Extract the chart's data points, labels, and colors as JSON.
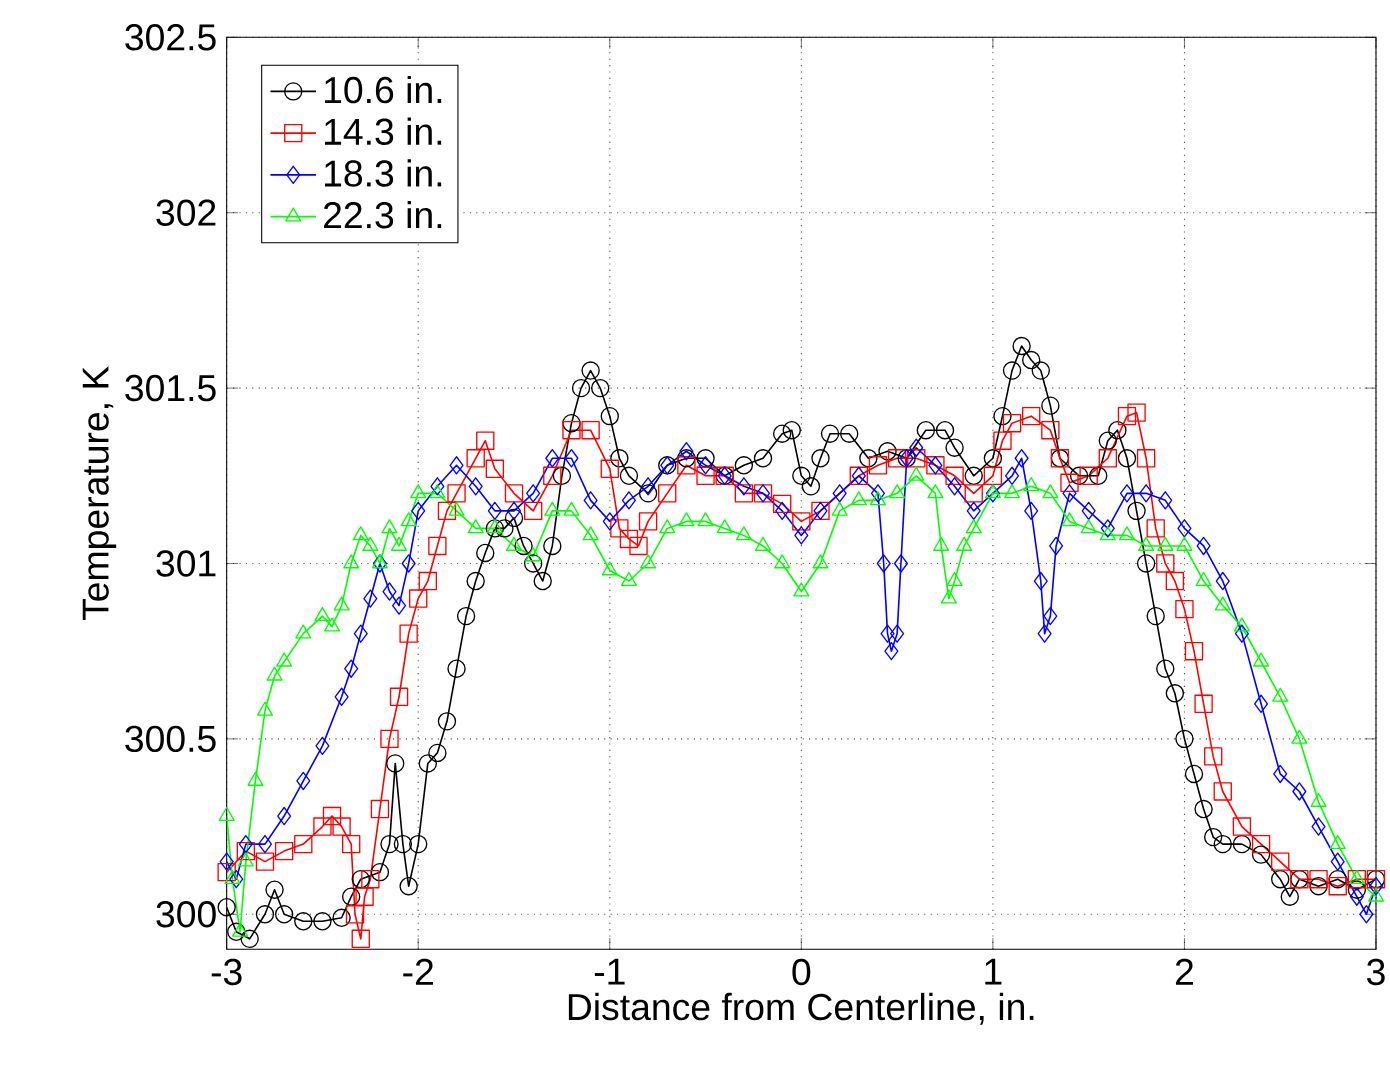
{
  "chart_data": {
    "type": "line",
    "xlabel": "Distance from Centerline, in.",
    "ylabel": "Temperature, K",
    "xlim": [
      -3,
      3
    ],
    "ylim": [
      299.9,
      302.5
    ],
    "xticks": [
      -3,
      -2,
      -1,
      0,
      1,
      2,
      3
    ],
    "yticks": [
      300,
      300.5,
      301,
      301.5,
      302,
      302.5
    ],
    "grid": true,
    "legend": "top left",
    "line_style": "solid",
    "series": [
      {
        "name": "10.6 in.",
        "color": "#000000",
        "marker": "circle",
        "x": [
          -3.0,
          -2.95,
          -2.88,
          -2.8,
          -2.75,
          -2.7,
          -2.6,
          -2.5,
          -2.4,
          -2.35,
          -2.3,
          -2.2,
          -2.15,
          -2.12,
          -2.08,
          -2.05,
          -2.0,
          -1.95,
          -1.9,
          -1.85,
          -1.8,
          -1.75,
          -1.7,
          -1.65,
          -1.6,
          -1.55,
          -1.5,
          -1.45,
          -1.4,
          -1.35,
          -1.3,
          -1.25,
          -1.2,
          -1.15,
          -1.1,
          -1.05,
          -1.0,
          -0.95,
          -0.9,
          -0.8,
          -0.7,
          -0.6,
          -0.5,
          -0.4,
          -0.3,
          -0.2,
          -0.1,
          -0.05,
          0.0,
          0.05,
          0.1,
          0.15,
          0.25,
          0.35,
          0.45,
          0.55,
          0.65,
          0.75,
          0.8,
          0.9,
          1.0,
          1.05,
          1.1,
          1.15,
          1.2,
          1.25,
          1.3,
          1.35,
          1.45,
          1.55,
          1.6,
          1.65,
          1.7,
          1.75,
          1.8,
          1.85,
          1.9,
          1.95,
          2.0,
          2.05,
          2.1,
          2.15,
          2.2,
          2.3,
          2.4,
          2.5,
          2.55,
          2.6,
          2.7,
          2.8,
          2.9,
          3.0
        ],
        "values": [
          300.02,
          299.95,
          299.93,
          300.0,
          300.07,
          300.0,
          299.98,
          299.98,
          299.99,
          300.05,
          300.1,
          300.12,
          300.2,
          300.43,
          300.2,
          300.08,
          300.2,
          300.43,
          300.46,
          300.55,
          300.7,
          300.85,
          300.95,
          301.03,
          301.1,
          301.1,
          301.13,
          301.05,
          301.0,
          300.95,
          301.05,
          301.25,
          301.4,
          301.5,
          301.55,
          301.5,
          301.42,
          301.3,
          301.25,
          301.2,
          301.28,
          301.3,
          301.3,
          301.25,
          301.28,
          301.3,
          301.37,
          301.38,
          301.25,
          301.22,
          301.3,
          301.37,
          301.37,
          301.3,
          301.32,
          301.3,
          301.38,
          301.38,
          301.33,
          301.25,
          301.3,
          301.42,
          301.55,
          301.62,
          301.58,
          301.55,
          301.45,
          301.3,
          301.25,
          301.25,
          301.35,
          301.38,
          301.3,
          301.15,
          301.0,
          300.85,
          300.7,
          300.63,
          300.5,
          300.4,
          300.3,
          300.22,
          300.2,
          300.2,
          300.17,
          300.1,
          300.05,
          300.1,
          300.08,
          300.1,
          300.07,
          300.1
        ]
      },
      {
        "name": "14.3 in.",
        "color": "#ff0000",
        "marker": "square",
        "x": [
          -3.0,
          -2.9,
          -2.8,
          -2.7,
          -2.6,
          -2.5,
          -2.45,
          -2.4,
          -2.35,
          -2.33,
          -2.3,
          -2.28,
          -2.25,
          -2.2,
          -2.15,
          -2.1,
          -2.05,
          -2.0,
          -1.95,
          -1.9,
          -1.85,
          -1.8,
          -1.7,
          -1.65,
          -1.6,
          -1.5,
          -1.4,
          -1.3,
          -1.2,
          -1.1,
          -1.0,
          -0.95,
          -0.9,
          -0.85,
          -0.8,
          -0.7,
          -0.6,
          -0.5,
          -0.4,
          -0.3,
          -0.2,
          -0.1,
          0.0,
          0.1,
          0.3,
          0.4,
          0.5,
          0.6,
          0.7,
          0.8,
          0.9,
          1.0,
          1.05,
          1.1,
          1.2,
          1.3,
          1.35,
          1.4,
          1.5,
          1.6,
          1.7,
          1.75,
          1.8,
          1.85,
          1.9,
          1.95,
          2.0,
          2.05,
          2.1,
          2.15,
          2.2,
          2.3,
          2.4,
          2.5,
          2.6,
          2.7,
          2.8,
          2.9,
          3.0
        ],
        "values": [
          300.12,
          300.18,
          300.15,
          300.18,
          300.2,
          300.25,
          300.28,
          300.25,
          300.2,
          300.0,
          299.93,
          300.05,
          300.1,
          300.3,
          300.5,
          300.62,
          300.8,
          300.9,
          300.95,
          301.05,
          301.15,
          301.2,
          301.3,
          301.35,
          301.27,
          301.2,
          301.15,
          301.25,
          301.38,
          301.38,
          301.27,
          301.1,
          301.07,
          301.05,
          301.12,
          301.2,
          301.28,
          301.25,
          301.25,
          301.2,
          301.2,
          301.17,
          301.12,
          301.15,
          301.25,
          301.28,
          301.3,
          301.3,
          301.28,
          301.25,
          301.2,
          301.25,
          301.35,
          301.4,
          301.42,
          301.38,
          301.3,
          301.23,
          301.25,
          301.3,
          301.42,
          301.43,
          301.3,
          301.1,
          301.0,
          300.95,
          300.87,
          300.75,
          300.6,
          300.45,
          300.35,
          300.25,
          300.2,
          300.15,
          300.1,
          300.1,
          300.08,
          300.1,
          300.1
        ]
      },
      {
        "name": "18.3 in.",
        "color": "#0000ff",
        "marker": "diamond",
        "x": [
          -3.0,
          -2.95,
          -2.9,
          -2.8,
          -2.7,
          -2.6,
          -2.5,
          -2.4,
          -2.35,
          -2.3,
          -2.25,
          -2.2,
          -2.15,
          -2.1,
          -2.05,
          -2.0,
          -1.9,
          -1.8,
          -1.7,
          -1.6,
          -1.5,
          -1.4,
          -1.3,
          -1.2,
          -1.1,
          -1.0,
          -0.9,
          -0.8,
          -0.7,
          -0.6,
          -0.5,
          -0.4,
          -0.3,
          -0.2,
          -0.1,
          0.0,
          0.1,
          0.2,
          0.3,
          0.4,
          0.43,
          0.45,
          0.47,
          0.5,
          0.52,
          0.55,
          0.6,
          0.7,
          0.8,
          0.9,
          1.0,
          1.1,
          1.15,
          1.2,
          1.25,
          1.27,
          1.3,
          1.33,
          1.4,
          1.5,
          1.6,
          1.7,
          1.8,
          1.9,
          2.0,
          2.1,
          2.2,
          2.3,
          2.4,
          2.5,
          2.6,
          2.7,
          2.8,
          2.9,
          2.95,
          3.0
        ],
        "values": [
          300.15,
          300.1,
          300.2,
          300.2,
          300.28,
          300.38,
          300.48,
          300.62,
          300.7,
          300.8,
          300.9,
          301.0,
          300.92,
          300.88,
          301.0,
          301.15,
          301.22,
          301.28,
          301.22,
          301.15,
          301.15,
          301.2,
          301.3,
          301.3,
          301.18,
          301.12,
          301.18,
          301.22,
          301.28,
          301.32,
          301.28,
          301.25,
          301.22,
          301.2,
          301.15,
          301.08,
          301.15,
          301.2,
          301.25,
          301.2,
          301.0,
          300.8,
          300.75,
          300.8,
          301.0,
          301.3,
          301.33,
          301.28,
          301.22,
          301.15,
          301.2,
          301.25,
          301.3,
          301.15,
          300.95,
          300.8,
          300.85,
          301.05,
          301.2,
          301.15,
          301.1,
          301.2,
          301.2,
          301.18,
          301.1,
          301.05,
          300.95,
          300.8,
          300.6,
          300.4,
          300.35,
          300.25,
          300.15,
          300.05,
          300.0,
          300.08
        ]
      },
      {
        "name": "22.3 in.",
        "color": "#00ff00",
        "marker": "triangle",
        "x": [
          -3.0,
          -2.97,
          -2.93,
          -2.9,
          -2.85,
          -2.8,
          -2.75,
          -2.7,
          -2.6,
          -2.5,
          -2.45,
          -2.4,
          -2.35,
          -2.3,
          -2.25,
          -2.2,
          -2.15,
          -2.1,
          -2.05,
          -2.0,
          -1.9,
          -1.8,
          -1.7,
          -1.6,
          -1.5,
          -1.4,
          -1.3,
          -1.2,
          -1.1,
          -1.0,
          -0.9,
          -0.8,
          -0.7,
          -0.6,
          -0.5,
          -0.4,
          -0.3,
          -0.2,
          -0.1,
          0.0,
          0.1,
          0.2,
          0.3,
          0.4,
          0.5,
          0.6,
          0.7,
          0.73,
          0.77,
          0.8,
          0.85,
          0.9,
          1.0,
          1.1,
          1.2,
          1.3,
          1.4,
          1.5,
          1.6,
          1.7,
          1.8,
          1.9,
          2.0,
          2.1,
          2.2,
          2.3,
          2.4,
          2.5,
          2.6,
          2.7,
          2.8,
          2.9,
          3.0
        ],
        "values": [
          300.28,
          300.1,
          299.95,
          300.15,
          300.38,
          300.58,
          300.68,
          300.72,
          300.8,
          300.85,
          300.82,
          300.88,
          301.0,
          301.08,
          301.05,
          301.0,
          301.1,
          301.05,
          301.12,
          301.2,
          301.2,
          301.15,
          301.1,
          301.1,
          301.05,
          301.02,
          301.15,
          301.15,
          301.08,
          300.98,
          300.95,
          301.0,
          301.1,
          301.12,
          301.12,
          301.1,
          301.08,
          301.05,
          301.0,
          300.92,
          301.0,
          301.15,
          301.18,
          301.18,
          301.2,
          301.25,
          301.2,
          301.05,
          300.9,
          300.95,
          301.05,
          301.1,
          301.2,
          301.2,
          301.22,
          301.2,
          301.12,
          301.1,
          301.08,
          301.08,
          301.05,
          301.05,
          301.05,
          300.95,
          300.88,
          300.82,
          300.72,
          300.62,
          300.5,
          300.32,
          300.2,
          300.1,
          300.05
        ]
      }
    ]
  }
}
